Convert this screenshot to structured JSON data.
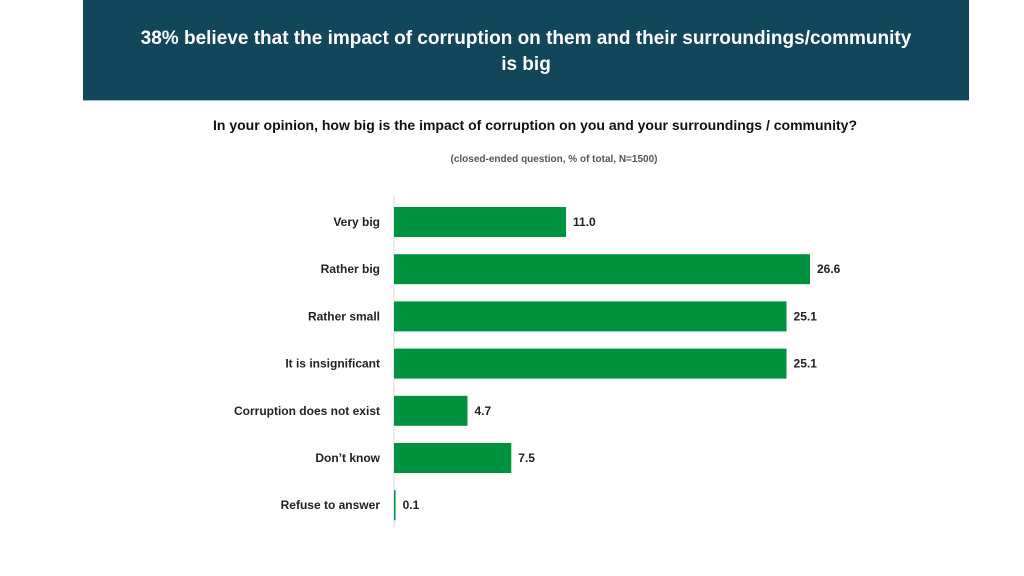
{
  "header": {
    "title_line1": "38% believe that the impact of corruption on them and their surroundings/community",
    "title_line2": "is big",
    "background": "#12465b"
  },
  "chart_data": {
    "type": "bar",
    "orientation": "horizontal",
    "title": "In your opinion, how big is the impact of corruption on you and your surroundings / community?",
    "subtitle": "(closed-ended question, % of total, N=1500)",
    "categories": [
      "Very big",
      "Rather big",
      "Rather small",
      "It is insignificant",
      "Corruption does not exist",
      "Don’t know",
      "Refuse to answer"
    ],
    "values": [
      11.0,
      26.6,
      25.1,
      25.1,
      4.7,
      7.5,
      0.1
    ],
    "value_labels": [
      "11.0",
      "26.6",
      "25.1",
      "25.1",
      "4.7",
      "7.5",
      "0.1"
    ],
    "bar_color": "#00923f",
    "xlim": [
      0,
      26.6
    ],
    "grid": false,
    "legend": "none"
  }
}
